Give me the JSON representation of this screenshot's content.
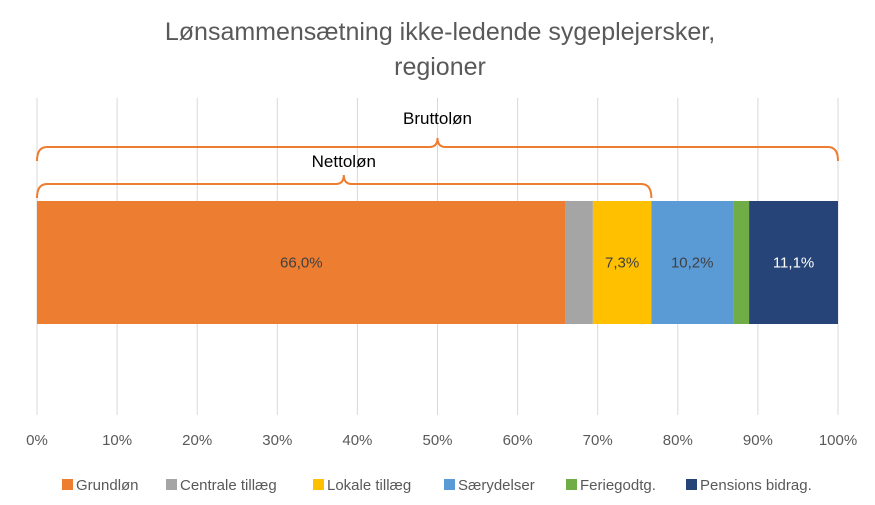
{
  "chart_data": {
    "type": "bar",
    "orientation": "horizontal-stacked-100",
    "title": "Lønsammensætning ikke-ledende sygeplejersker, regioner",
    "title_lines": [
      "Lønsammensætning ikke-ledende sygeplejersker,",
      "regioner"
    ],
    "xlim": [
      0,
      100
    ],
    "x_ticks": [
      "0%",
      "10%",
      "20%",
      "30%",
      "40%",
      "50%",
      "60%",
      "70%",
      "80%",
      "90%",
      "100%"
    ],
    "grid": true,
    "legend_position": "bottom",
    "series": [
      {
        "name": "Grundløn",
        "value": 66.0,
        "label": "66,0%",
        "color": "#ED7D31"
      },
      {
        "name": "Centrale tillæg",
        "value": 3.4,
        "label": "",
        "color": "#A5A5A5"
      },
      {
        "name": "Lokale tillæg",
        "value": 7.3,
        "label": "7,3%",
        "color": "#FFC000"
      },
      {
        "name": "Særydelser",
        "value": 10.2,
        "label": "10,2%",
        "color": "#5B9BD5"
      },
      {
        "name": "Feriegodtg.",
        "value": 2.0,
        "label": "",
        "color": "#70AD47"
      },
      {
        "name": "Pensions bidrag.",
        "value": 11.1,
        "label": "11,1%",
        "color": "#264478"
      }
    ],
    "annotations": [
      {
        "label": "Bruttoløn",
        "from": 0,
        "to": 100,
        "peak": 50
      },
      {
        "label": "Nettoløn",
        "from": 0,
        "to": 76.7,
        "peak": 38.3
      }
    ],
    "brace_color": "#ED7D31"
  }
}
